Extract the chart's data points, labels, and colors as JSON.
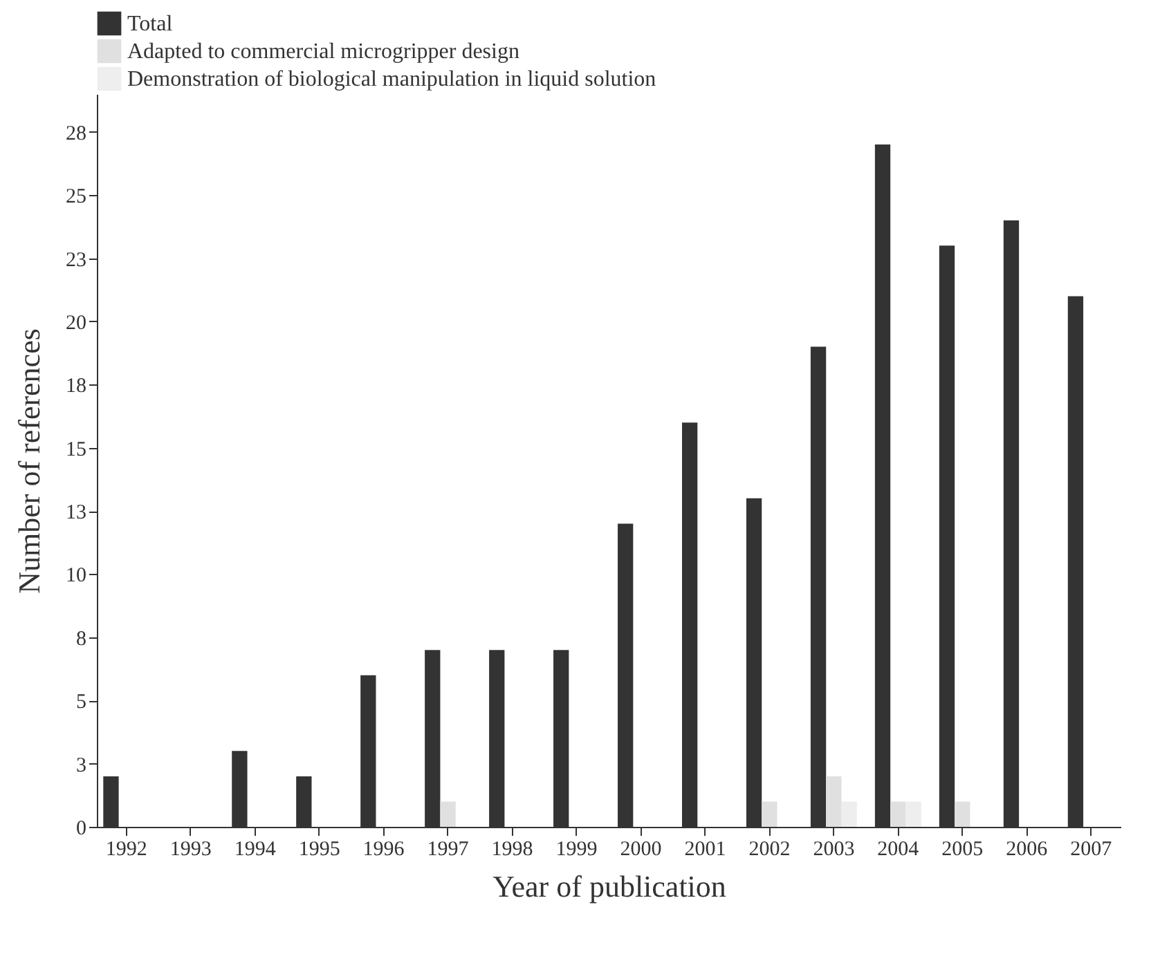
{
  "chart_data": {
    "type": "bar",
    "xlabel": "Year of publication",
    "ylabel": "Number of references",
    "categories": [
      "1992",
      "1993",
      "1994",
      "1995",
      "1996",
      "1997",
      "1998",
      "1999",
      "2000",
      "2001",
      "2002",
      "2003",
      "2004",
      "2005",
      "2006",
      "2007"
    ],
    "series": [
      {
        "name": "Total",
        "color": "#333333",
        "values": [
          2,
          0,
          3,
          2,
          6,
          7,
          7,
          7,
          12,
          16,
          13,
          19,
          27,
          23,
          24,
          21
        ]
      },
      {
        "name": "Adapted to commercial microgripper design",
        "color": "#e0e0e0",
        "values": [
          null,
          null,
          null,
          null,
          null,
          1,
          null,
          null,
          null,
          null,
          1,
          2,
          1,
          1,
          null,
          null
        ]
      },
      {
        "name": "Demonstration of biological manipulation in liquid solution",
        "color": "#eeeeee",
        "values": [
          null,
          null,
          null,
          null,
          null,
          null,
          null,
          null,
          null,
          null,
          null,
          1,
          1,
          null,
          null,
          null
        ]
      }
    ],
    "ylim": [
      0,
      29
    ],
    "yticks": [
      0,
      {
        "value": 2.5,
        "label": "3"
      },
      5,
      {
        "value": 7.5,
        "label": "8"
      },
      10,
      {
        "value": 12.5,
        "label": "13"
      },
      15,
      {
        "value": 17.5,
        "label": "18"
      },
      20,
      {
        "value": 22.5,
        "label": "23"
      },
      25,
      {
        "value": 27.5,
        "label": "28"
      }
    ],
    "legend": "top left",
    "grid": false
  }
}
